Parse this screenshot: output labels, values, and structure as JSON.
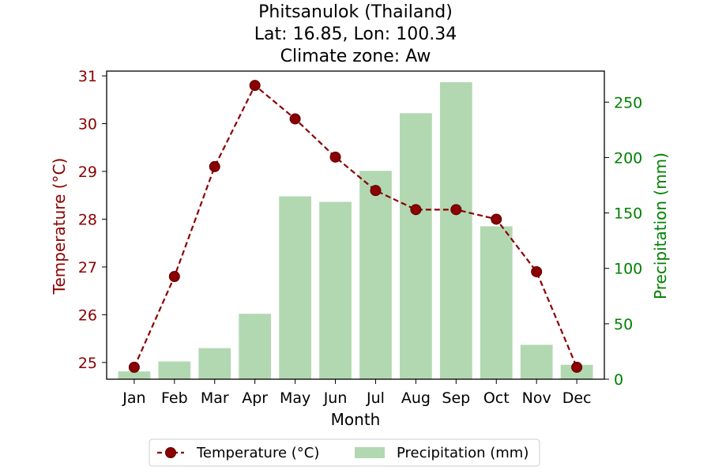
{
  "chart_data": {
    "type": "bar",
    "title_lines": [
      "Phitsanulok (Thailand)",
      "Lat: 16.85, Lon: 100.34",
      "Climate zone: Aw"
    ],
    "xlabel": "Month",
    "ylabel_left": "Temperature (°C)",
    "ylabel_right": "Precipitation (mm)",
    "categories": [
      "Jan",
      "Feb",
      "Mar",
      "Apr",
      "May",
      "Jun",
      "Jul",
      "Aug",
      "Sep",
      "Oct",
      "Nov",
      "Dec"
    ],
    "series": [
      {
        "name": "Temperature (°C)",
        "type": "line",
        "axis": "left",
        "style": "dashed",
        "values": [
          24.9,
          26.8,
          29.1,
          30.8,
          30.1,
          29.3,
          28.6,
          28.2,
          28.2,
          28.0,
          26.9,
          24.9
        ]
      },
      {
        "name": "Precipitation (mm)",
        "type": "bar",
        "axis": "right",
        "values": [
          7,
          16,
          28,
          59,
          165,
          160,
          188,
          240,
          268,
          138,
          31,
          13
        ]
      }
    ],
    "ylim_left": [
      24.65,
      31.1
    ],
    "yticks_left": [
      25,
      26,
      27,
      28,
      29,
      30,
      31
    ],
    "ylim_right": [
      0,
      278
    ],
    "yticks_right": [
      0,
      50,
      100,
      150,
      200,
      250
    ],
    "legend_position": "bottom-center",
    "colors": {
      "temperature": "#8b0000",
      "temperature_marker_edge": "#5a0000",
      "precipitation": "#b2d8b2",
      "left_axis_text": "#8b0000",
      "right_axis_text": "#008000"
    }
  }
}
